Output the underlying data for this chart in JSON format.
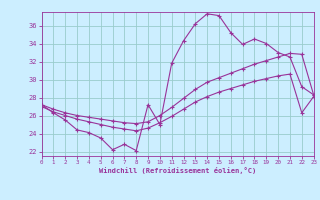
{
  "xlabel": "Windchill (Refroidissement éolien,°C)",
  "bg_color": "#cceeff",
  "line_color": "#993399",
  "grid_color": "#99cccc",
  "x_min": 0,
  "x_max": 23,
  "y_min": 21.5,
  "y_max": 37.5,
  "yticks": [
    22,
    24,
    26,
    28,
    30,
    32,
    34,
    36
  ],
  "xticks": [
    0,
    1,
    2,
    3,
    4,
    5,
    6,
    7,
    8,
    9,
    10,
    11,
    12,
    13,
    14,
    15,
    16,
    17,
    18,
    19,
    20,
    21,
    22,
    23
  ],
  "line1_x": [
    0,
    1,
    2,
    3,
    4,
    5,
    6,
    7,
    8,
    9,
    10,
    11,
    12,
    13,
    14,
    15,
    16,
    17,
    18,
    19,
    20,
    21,
    22,
    23
  ],
  "line1_y": [
    27.2,
    26.3,
    25.5,
    24.4,
    24.1,
    23.5,
    22.2,
    22.8,
    22.1,
    27.2,
    25.0,
    31.8,
    34.3,
    36.2,
    37.3,
    37.1,
    35.2,
    33.9,
    34.5,
    34.0,
    33.0,
    32.5,
    29.2,
    28.3
  ],
  "line2_x": [
    0,
    1,
    2,
    3,
    4,
    5,
    6,
    7,
    8,
    9,
    10,
    11,
    12,
    13,
    14,
    15,
    16,
    17,
    18,
    19,
    20,
    21,
    22,
    23
  ],
  "line2_y": [
    27.2,
    26.7,
    26.3,
    26.0,
    25.8,
    25.6,
    25.4,
    25.2,
    25.1,
    25.3,
    26.0,
    26.9,
    27.9,
    28.9,
    29.7,
    30.2,
    30.7,
    31.2,
    31.7,
    32.1,
    32.5,
    32.9,
    32.8,
    28.3
  ],
  "line3_x": [
    0,
    1,
    2,
    3,
    4,
    5,
    6,
    7,
    8,
    9,
    10,
    11,
    12,
    13,
    14,
    15,
    16,
    17,
    18,
    19,
    20,
    21,
    22,
    23
  ],
  "line3_y": [
    27.0,
    26.4,
    26.0,
    25.6,
    25.3,
    25.0,
    24.7,
    24.5,
    24.3,
    24.6,
    25.2,
    25.9,
    26.7,
    27.5,
    28.1,
    28.6,
    29.0,
    29.4,
    29.8,
    30.1,
    30.4,
    30.6,
    26.3,
    28.1
  ]
}
